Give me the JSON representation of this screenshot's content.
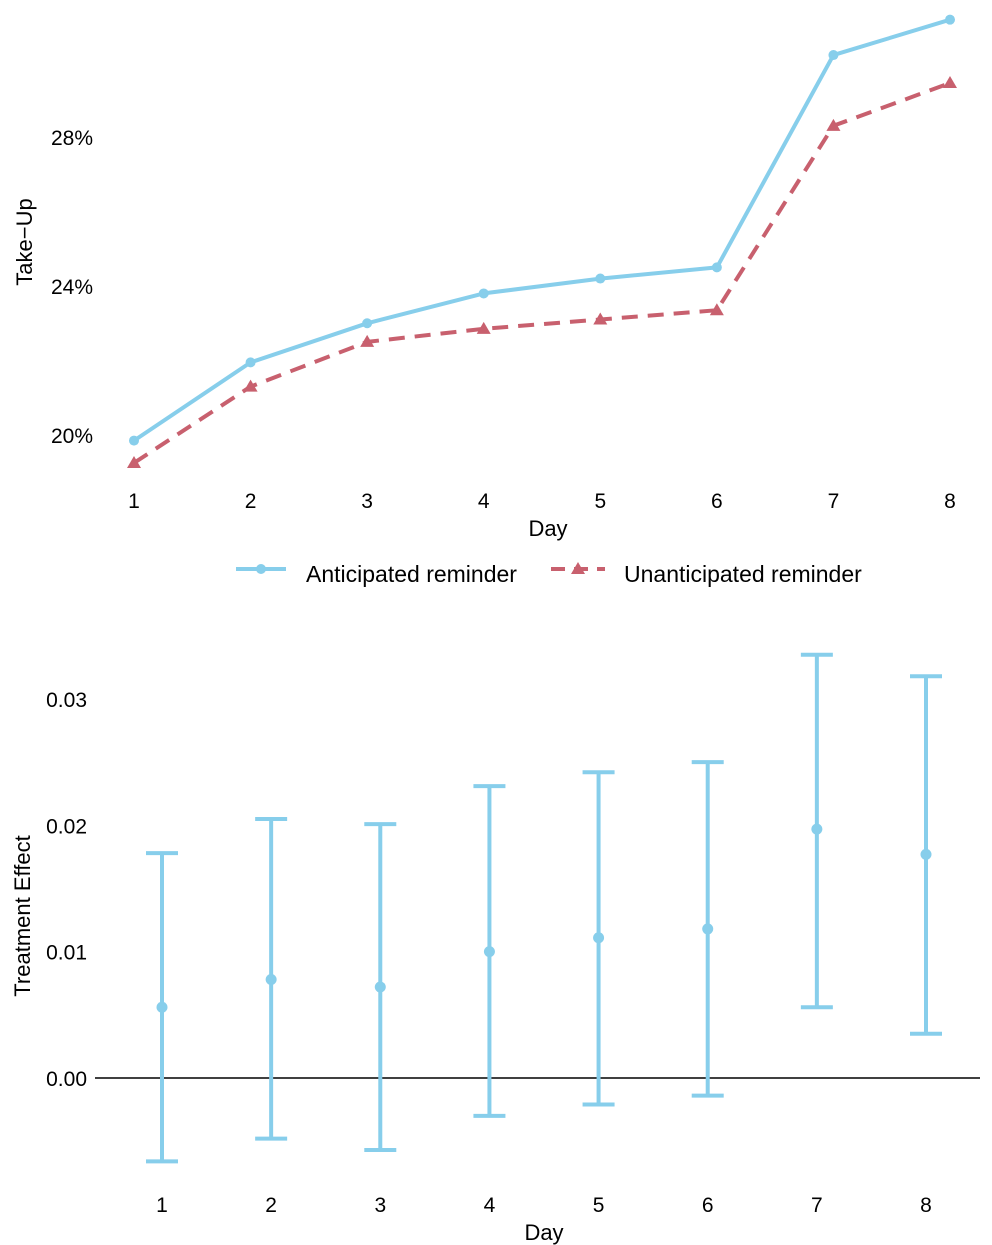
{
  "colors": {
    "anticipated": "#87ceeb",
    "unanticipated": "#c8606e",
    "zero_line": "#000000"
  },
  "chart_data": [
    {
      "type": "line",
      "xlabel": "Day",
      "ylabel": "Take−Up",
      "x": [
        1,
        2,
        3,
        4,
        5,
        6,
        7,
        8
      ],
      "xlim": [
        1,
        8
      ],
      "ylim": [
        19.2,
        31.1
      ],
      "y_ticks": [
        20,
        24,
        28
      ],
      "y_tick_labels": [
        "20%",
        "24%",
        "28%"
      ],
      "grid": false,
      "legend_position": "bottom",
      "series": [
        {
          "name": "Anticipated reminder",
          "marker": "circle",
          "line_style": "solid",
          "color": "#87ceeb",
          "values": [
            19.85,
            21.95,
            23.0,
            23.8,
            24.2,
            24.5,
            30.2,
            31.15
          ]
        },
        {
          "name": "Unanticipated reminder",
          "marker": "triangle",
          "line_style": "dashed",
          "color": "#c8606e",
          "values": [
            19.25,
            21.3,
            22.5,
            22.85,
            23.1,
            23.35,
            28.3,
            29.45
          ]
        }
      ]
    },
    {
      "type": "errorbar",
      "xlabel": "Day",
      "ylabel": "Treatment Effect",
      "x": [
        1,
        2,
        3,
        4,
        5,
        6,
        7,
        8
      ],
      "ylim": [
        -0.008,
        0.034
      ],
      "y_ticks": [
        0.0,
        0.01,
        0.02,
        0.03
      ],
      "y_tick_labels": [
        "0.00",
        "0.01",
        "0.02",
        "0.03"
      ],
      "reference_line": 0,
      "grid": false,
      "color": "#87ceeb",
      "estimates": [
        0.0056,
        0.0078,
        0.0072,
        0.01,
        0.0111,
        0.0118,
        0.0197,
        0.0177
      ],
      "ci_lower": [
        -0.0066,
        -0.0048,
        -0.0057,
        -0.003,
        -0.0021,
        -0.0014,
        0.0056,
        0.0035
      ],
      "ci_upper": [
        0.0178,
        0.0205,
        0.0201,
        0.0231,
        0.0242,
        0.025,
        0.0335,
        0.0318
      ]
    }
  ]
}
